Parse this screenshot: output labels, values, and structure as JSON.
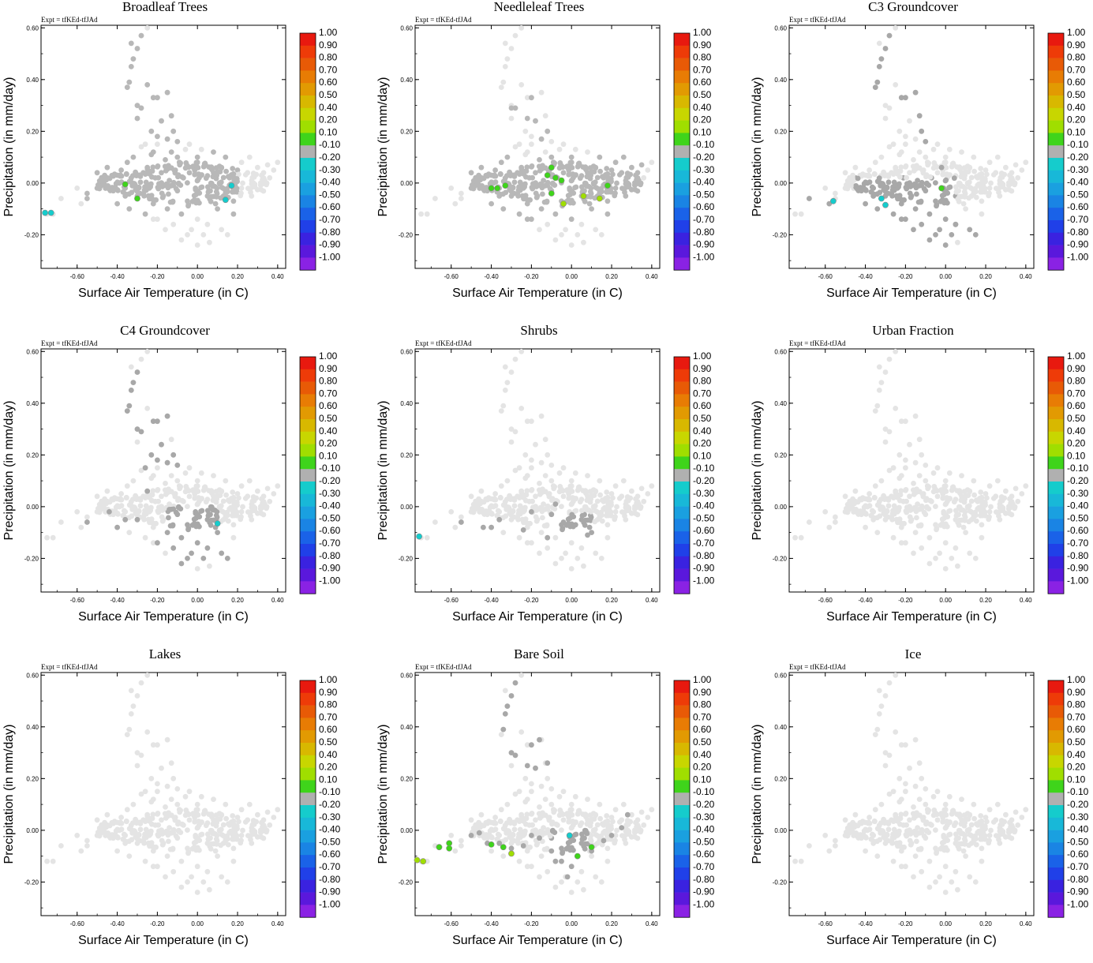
{
  "figure": {
    "expt_label": "Expt = tfKEd-tfJAd",
    "xlabel": "Surface Air Temperature (in C)",
    "ylabel": "Precipitation (in mm/day)"
  },
  "chart_data": {
    "type": "scatter",
    "x_range": [
      -0.78,
      0.44
    ],
    "y_range": [
      -0.33,
      0.61
    ],
    "x_ticks": [
      "-0.60",
      "-0.40",
      "-0.20",
      "0.00",
      "0.20",
      "0.40"
    ],
    "y_ticks": [
      "-0.20",
      "0.00",
      "0.20",
      "0.40",
      "0.60"
    ],
    "colorbar": {
      "labels": [
        "1.00",
        "0.90",
        "0.80",
        "0.70",
        "0.60",
        "0.50",
        "0.40",
        "0.20",
        "0.10",
        "-0.10",
        "-0.20",
        "-0.30",
        "-0.40",
        "-0.50",
        "-0.60",
        "-0.70",
        "-0.80",
        "-0.90",
        "-1.00"
      ],
      "colors": [
        "#e8190f",
        "#ee3b08",
        "#e85a06",
        "#e87c04",
        "#e29a02",
        "#d8b800",
        "#c8d600",
        "#a0de00",
        "#3fd41b",
        "#b0b0b0",
        "#15cccc",
        "#18b8d8",
        "#1aa0e0",
        "#1a84e4",
        "#1a62e8",
        "#2040e8",
        "#3a22e0",
        "#5a18dc",
        "#8a22e4"
      ]
    },
    "cloud_points": [
      [
        -0.75,
        -0.12
      ],
      [
        -0.72,
        -0.12
      ],
      [
        -0.68,
        -0.06
      ],
      [
        -0.55,
        -0.06
      ],
      [
        -0.55,
        -0.04
      ],
      [
        -0.5,
        -0.02
      ],
      [
        -0.48,
        -0.01
      ],
      [
        -0.45,
        0.02
      ],
      [
        -0.42,
        -0.03
      ],
      [
        -0.4,
        0.03
      ],
      [
        -0.4,
        -0.08
      ],
      [
        -0.38,
        0.05
      ],
      [
        -0.36,
        -0.02
      ],
      [
        -0.35,
        0.08
      ],
      [
        -0.34,
        -0.1
      ],
      [
        -0.32,
        0.1
      ],
      [
        -0.3,
        0.03
      ],
      [
        -0.3,
        -0.05
      ],
      [
        -0.28,
        0.14
      ],
      [
        -0.27,
        0.04
      ],
      [
        -0.26,
        -0.12
      ],
      [
        -0.25,
        0.06
      ],
      [
        -0.24,
        -0.02
      ],
      [
        -0.23,
        0.11
      ],
      [
        -0.22,
        -0.08
      ],
      [
        -0.21,
        0.02
      ],
      [
        -0.2,
        0.15
      ],
      [
        -0.2,
        -0.14
      ],
      [
        -0.18,
        0.04
      ],
      [
        -0.17,
        -0.05
      ],
      [
        -0.16,
        0.09
      ],
      [
        -0.15,
        -0.1
      ],
      [
        -0.14,
        0.01
      ],
      [
        -0.13,
        0.12
      ],
      [
        -0.12,
        -0.16
      ],
      [
        -0.11,
        0.05
      ],
      [
        -0.1,
        -0.03
      ],
      [
        -0.09,
        0.08
      ],
      [
        -0.08,
        -0.12
      ],
      [
        -0.07,
        0.02
      ],
      [
        -0.06,
        0.13
      ],
      [
        -0.05,
        -0.07
      ],
      [
        -0.04,
        0.04
      ],
      [
        -0.03,
        -0.18
      ],
      [
        -0.02,
        0.06
      ],
      [
        -0.01,
        -0.02
      ],
      [
        0.0,
        0.1
      ],
      [
        0.0,
        -0.14
      ],
      [
        0.02,
        0.03
      ],
      [
        0.03,
        -0.2
      ],
      [
        0.04,
        0.07
      ],
      [
        0.05,
        -0.05
      ],
      [
        0.06,
        -0.23
      ],
      [
        0.08,
        0.04
      ],
      [
        0.1,
        -0.1
      ],
      [
        0.12,
        0.06
      ],
      [
        0.14,
        -0.04
      ],
      [
        0.16,
        0.02
      ],
      [
        0.18,
        -0.07
      ],
      [
        0.2,
        0.05
      ],
      [
        0.22,
        -0.02
      ],
      [
        0.25,
        0.04
      ],
      [
        0.28,
        0.0
      ],
      [
        0.3,
        0.06
      ],
      [
        0.32,
        0.03
      ],
      [
        0.35,
        0.07
      ],
      [
        0.38,
        0.05
      ],
      [
        0.4,
        0.08
      ],
      [
        -0.3,
        0.3
      ],
      [
        -0.28,
        0.29
      ],
      [
        -0.32,
        0.48
      ],
      [
        -0.33,
        0.45
      ],
      [
        -0.34,
        0.39
      ],
      [
        -0.35,
        0.37
      ],
      [
        -0.3,
        0.52
      ],
      [
        -0.3,
        0.25
      ],
      [
        -0.22,
        0.33
      ],
      [
        -0.2,
        0.33
      ],
      [
        -0.15,
        0.35
      ],
      [
        -0.25,
        0.38
      ],
      [
        -0.23,
        0.2
      ],
      [
        -0.18,
        0.24
      ],
      [
        -0.12,
        0.2
      ],
      [
        -0.1,
        0.16
      ],
      [
        -0.15,
        0.17
      ],
      [
        -0.28,
        0.57
      ],
      [
        -0.25,
        0.6
      ],
      [
        -0.33,
        0.54
      ],
      [
        -0.2,
        0.18
      ],
      [
        -0.13,
        0.26
      ],
      [
        -0.22,
        0.12
      ],
      [
        -0.26,
        0.15
      ],
      [
        -0.1,
        0.1
      ],
      [
        0.0,
        0.08
      ],
      [
        0.12,
        -0.18
      ],
      [
        0.15,
        -0.2
      ],
      [
        0.18,
        -0.12
      ],
      [
        -0.05,
        -0.2
      ],
      [
        -0.08,
        -0.22
      ],
      [
        0.0,
        -0.24
      ],
      [
        0.05,
        -0.16
      ],
      [
        -0.16,
        -0.18
      ],
      [
        -0.22,
        -0.14
      ],
      [
        0.22,
        0.08
      ],
      [
        0.26,
        0.1
      ],
      [
        0.33,
        0.04
      ],
      [
        0.36,
        0.02
      ],
      [
        -0.45,
        0.06
      ],
      [
        -0.5,
        0.04
      ],
      [
        -0.6,
        -0.02
      ],
      [
        0.08,
        0.12
      ],
      [
        0.14,
        0.1
      ],
      [
        -0.04,
        0.15
      ],
      [
        0.02,
        0.13
      ],
      [
        0.09,
        -0.08
      ],
      [
        0.11,
        0.0
      ],
      [
        -0.36,
        -0.05
      ],
      [
        -0.44,
        -0.02
      ],
      [
        -0.58,
        -0.08
      ],
      [
        0.27,
        -0.05
      ]
    ],
    "panels": [
      {
        "title": "Broadleaf Trees",
        "default": "light",
        "highlight": {
          "rect": [
            -0.55,
            0.2,
            -0.12,
            0.12
          ],
          "col": "mid"
        },
        "dark_extra": [
          [
            -0.3,
            0.3
          ],
          [
            -0.28,
            0.29
          ],
          [
            -0.32,
            0.48
          ],
          [
            -0.33,
            0.45
          ],
          [
            -0.34,
            0.39
          ],
          [
            -0.35,
            0.37
          ],
          [
            -0.3,
            0.52
          ],
          [
            -0.3,
            0.25
          ],
          [
            -0.22,
            0.33
          ],
          [
            -0.2,
            0.33
          ],
          [
            -0.15,
            0.35
          ],
          [
            -0.25,
            0.38
          ],
          [
            -0.23,
            0.2
          ],
          [
            -0.18,
            0.24
          ],
          [
            -0.12,
            0.2
          ],
          [
            -0.1,
            0.16
          ],
          [
            -0.15,
            0.17
          ],
          [
            -0.28,
            0.57
          ],
          [
            -0.33,
            0.54
          ],
          [
            -0.2,
            0.18
          ],
          [
            -0.13,
            0.26
          ]
        ],
        "colored": [
          {
            "x": -0.36,
            "y": -0.005,
            "c": 8
          },
          {
            "x": -0.3,
            "y": -0.06,
            "c": 8
          },
          {
            "x": -0.76,
            "y": -0.115,
            "c": 10
          },
          {
            "x": -0.73,
            "y": -0.115,
            "c": 10
          },
          {
            "x": 0.14,
            "y": -0.065,
            "c": 10
          },
          {
            "x": 0.17,
            "y": -0.01,
            "c": 10
          }
        ]
      },
      {
        "title": "Needleleaf Trees",
        "default": "light",
        "highlight": {
          "rect": [
            -0.5,
            0.35,
            -0.14,
            0.1
          ],
          "col": "mid"
        },
        "dark_extra": [
          [
            -0.3,
            0.29
          ],
          [
            -0.28,
            0.29
          ],
          [
            -0.2,
            0.33
          ],
          [
            -0.22,
            0.25
          ],
          [
            -0.18,
            0.24
          ],
          [
            -0.12,
            0.2
          ],
          [
            -0.15,
            0.17
          ]
        ],
        "colored": [
          {
            "x": -0.4,
            "y": -0.02,
            "c": 8
          },
          {
            "x": -0.37,
            "y": -0.02,
            "c": 8
          },
          {
            "x": -0.33,
            "y": -0.01,
            "c": 8
          },
          {
            "x": -0.1,
            "y": 0.06,
            "c": 8
          },
          {
            "x": -0.08,
            "y": 0.02,
            "c": 8
          },
          {
            "x": -0.05,
            "y": 0.01,
            "c": 8
          },
          {
            "x": -0.1,
            "y": -0.04,
            "c": 8
          },
          {
            "x": -0.12,
            "y": 0.03,
            "c": 8
          },
          {
            "x": -0.04,
            "y": -0.08,
            "c": 7
          },
          {
            "x": 0.06,
            "y": -0.05,
            "c": 7
          },
          {
            "x": 0.14,
            "y": -0.06,
            "c": 7
          },
          {
            "x": 0.18,
            "y": -0.01,
            "c": 8
          }
        ]
      },
      {
        "title": "C3 Groundcover",
        "default": "light",
        "highlight": {
          "rect": [
            -0.45,
            0.05,
            -0.22,
            0.02
          ],
          "col": "dark"
        },
        "dark_extra": [
          [
            -0.32,
            0.48
          ],
          [
            -0.33,
            0.45
          ],
          [
            -0.34,
            0.39
          ],
          [
            -0.35,
            0.37
          ],
          [
            -0.3,
            0.52
          ],
          [
            -0.28,
            0.57
          ],
          [
            -0.22,
            0.33
          ],
          [
            -0.2,
            0.33
          ],
          [
            -0.15,
            0.35
          ],
          [
            -0.13,
            0.26
          ],
          [
            -0.12,
            0.2
          ],
          [
            -0.1,
            0.16
          ],
          [
            -0.02,
            0.06
          ],
          [
            0.0,
            -0.24
          ],
          [
            0.05,
            -0.16
          ],
          [
            0.12,
            -0.18
          ],
          [
            0.15,
            -0.2
          ],
          [
            -0.36,
            -0.05
          ],
          [
            -0.44,
            -0.02
          ],
          [
            -0.58,
            -0.08
          ],
          [
            -0.68,
            -0.06
          ]
        ],
        "colored": [
          {
            "x": -0.56,
            "y": -0.07,
            "c": 10
          },
          {
            "x": -0.32,
            "y": -0.06,
            "c": 10
          },
          {
            "x": -0.3,
            "y": -0.085,
            "c": 10
          },
          {
            "x": -0.02,
            "y": -0.02,
            "c": 8
          }
        ]
      },
      {
        "title": "C4 Groundcover",
        "default": "light",
        "highlight": {
          "rect": [
            -0.15,
            0.1,
            -0.22,
            0.0
          ],
          "col": "dark"
        },
        "dark_extra": [
          [
            -0.3,
            0.3
          ],
          [
            -0.28,
            0.29
          ],
          [
            -0.32,
            0.48
          ],
          [
            -0.33,
            0.45
          ],
          [
            -0.34,
            0.39
          ],
          [
            -0.35,
            0.37
          ],
          [
            -0.3,
            0.52
          ],
          [
            -0.22,
            0.33
          ],
          [
            -0.2,
            0.33
          ],
          [
            -0.15,
            0.35
          ],
          [
            -0.23,
            0.2
          ],
          [
            -0.18,
            0.24
          ],
          [
            -0.12,
            0.2
          ],
          [
            -0.1,
            0.16
          ],
          [
            -0.15,
            0.17
          ],
          [
            -0.2,
            0.18
          ],
          [
            -0.26,
            0.15
          ],
          [
            -0.36,
            -0.05
          ],
          [
            -0.44,
            -0.02
          ],
          [
            -0.55,
            -0.06
          ],
          [
            -0.4,
            -0.08
          ],
          [
            -0.3,
            -0.05
          ],
          [
            -0.25,
            0.06
          ],
          [
            -0.2,
            -0.14
          ],
          [
            0.12,
            -0.18
          ],
          [
            0.15,
            -0.2
          ]
        ],
        "colored": [
          {
            "x": 0.1,
            "y": -0.065,
            "c": 10
          }
        ]
      },
      {
        "title": "Shrubs",
        "default": "light",
        "highlight": {
          "rect": [
            -0.05,
            0.1,
            -0.13,
            -0.03
          ],
          "col": "dark"
        },
        "dark_extra": [
          [
            -0.55,
            -0.06
          ],
          [
            -0.44,
            -0.08
          ],
          [
            -0.4,
            -0.08
          ],
          [
            -0.36,
            -0.05
          ],
          [
            -0.2,
            -0.02
          ],
          [
            -0.12,
            -0.12
          ],
          [
            -0.1,
            -0.03
          ],
          [
            -0.08,
            0.01
          ],
          [
            -0.04,
            -0.06
          ],
          [
            0.02,
            -0.07
          ],
          [
            0.08,
            -0.11
          ],
          [
            -0.24,
            -0.09
          ]
        ],
        "colored": [
          {
            "x": -0.76,
            "y": -0.115,
            "c": 10
          }
        ]
      },
      {
        "title": "Urban Fraction",
        "default": "light",
        "colored": []
      },
      {
        "title": "Lakes",
        "default": "light",
        "colored": []
      },
      {
        "title": "Bare Soil",
        "default": "light",
        "highlight": {
          "rect": [
            -0.1,
            0.08,
            -0.15,
            0.0
          ],
          "col": "dark"
        },
        "dark_extra": [
          [
            -0.32,
            0.48
          ],
          [
            -0.3,
            0.52
          ],
          [
            -0.28,
            0.57
          ],
          [
            -0.33,
            0.45
          ],
          [
            -0.34,
            0.39
          ],
          [
            -0.3,
            0.3
          ],
          [
            -0.28,
            0.29
          ],
          [
            -0.2,
            0.33
          ],
          [
            -0.16,
            0.35
          ],
          [
            -0.12,
            0.26
          ],
          [
            -0.22,
            0.25
          ],
          [
            -0.18,
            0.24
          ],
          [
            -0.5,
            -0.02
          ],
          [
            -0.46,
            -0.01
          ],
          [
            -0.42,
            -0.05
          ],
          [
            -0.36,
            -0.05
          ],
          [
            -0.3,
            -0.07
          ],
          [
            -0.24,
            -0.06
          ],
          [
            -0.2,
            -0.02
          ],
          [
            -0.16,
            -0.03
          ],
          [
            0.1,
            -0.08
          ],
          [
            0.16,
            -0.04
          ],
          [
            0.2,
            -0.02
          ],
          [
            0.25,
            0.01
          ],
          [
            0.28,
            0.06
          ],
          [
            -0.05,
            -0.12
          ],
          [
            -0.1,
            -0.08
          ],
          [
            -0.02,
            -0.18
          ]
        ],
        "colored": [
          {
            "x": -0.77,
            "y": -0.115,
            "c": 7
          },
          {
            "x": -0.74,
            "y": -0.12,
            "c": 7
          },
          {
            "x": -0.66,
            "y": -0.065,
            "c": 8
          },
          {
            "x": -0.61,
            "y": -0.05,
            "c": 8
          },
          {
            "x": -0.61,
            "y": -0.07,
            "c": 8
          },
          {
            "x": -0.4,
            "y": -0.055,
            "c": 8
          },
          {
            "x": -0.34,
            "y": -0.065,
            "c": 8
          },
          {
            "x": -0.3,
            "y": -0.09,
            "c": 7
          },
          {
            "x": 0.03,
            "y": -0.1,
            "c": 8
          },
          {
            "x": 0.1,
            "y": -0.065,
            "c": 8
          },
          {
            "x": -0.01,
            "y": -0.02,
            "c": 10
          }
        ]
      },
      {
        "title": "Ice",
        "default": "light",
        "colored": []
      }
    ]
  }
}
